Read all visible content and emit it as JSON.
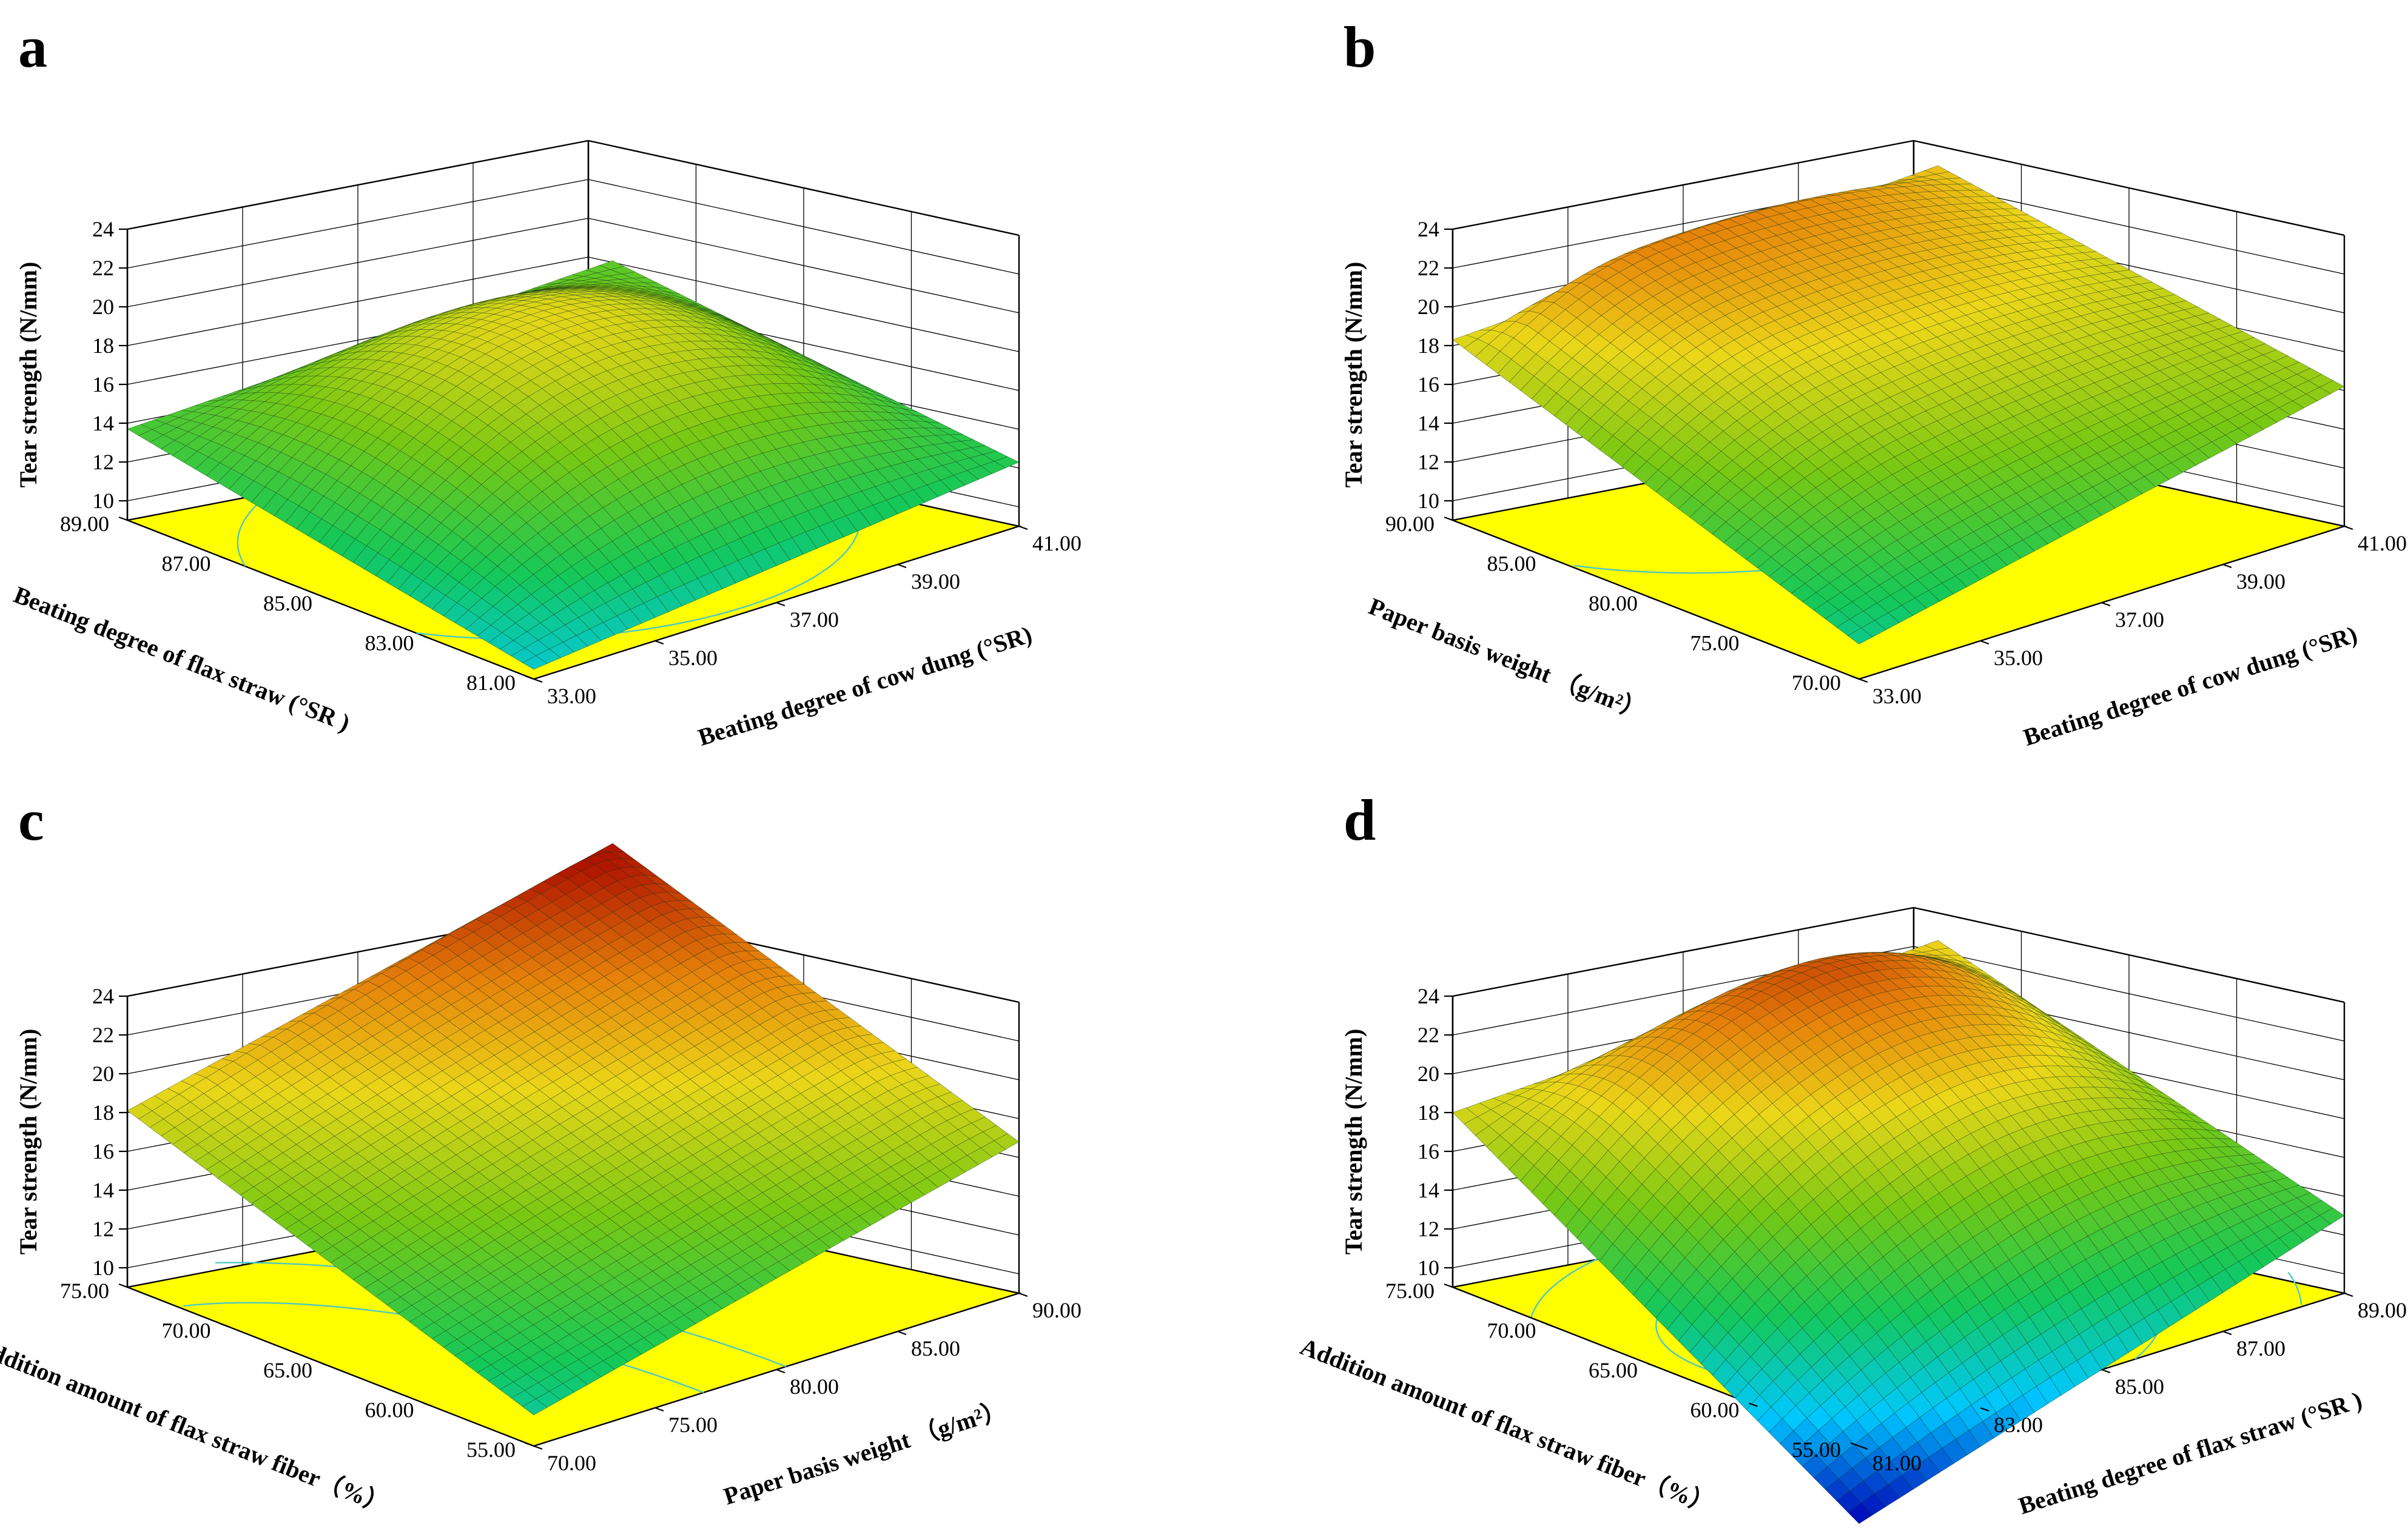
{
  "chart_data": [
    {
      "type": "surface3d",
      "panel": "a",
      "zlabel": "Tear strength (N/mm)",
      "zticks": [
        "10",
        "12",
        "14",
        "16",
        "18",
        "20",
        "22",
        "24"
      ],
      "zlim": [
        9,
        24
      ],
      "left_axis": {
        "label": "Beating degree of flax straw (°SR )",
        "ticks": [
          "81.00",
          "83.00",
          "85.00",
          "87.00",
          "89.00"
        ]
      },
      "right_axis": {
        "label": "Beating degree of cow dung (°SR)",
        "ticks": [
          "33.00",
          "35.00",
          "37.00",
          "39.00",
          "41.00"
        ]
      },
      "corners": {
        "front": 9.5,
        "left_far": 13.7,
        "right_far": 12.3,
        "back": 14.5
      },
      "peak": {
        "u": 0.5,
        "v": 0.55,
        "z": 18.3
      },
      "contours": [
        {
          "cu": 0.45,
          "cv": 0.5,
          "ru": 0.32,
          "rv": 0.3
        },
        {
          "cu": 0.45,
          "cv": 0.5,
          "ru": 0.5,
          "rv": 0.48
        }
      ]
    },
    {
      "type": "surface3d",
      "panel": "b",
      "zlabel": "Tear strength (N/mm)",
      "zticks": [
        "10",
        "12",
        "14",
        "16",
        "18",
        "20",
        "22",
        "24"
      ],
      "zlim": [
        9,
        24
      ],
      "left_axis": {
        "label": "Paper basis weight （g/m²）",
        "ticks": [
          "70.00",
          "75.00",
          "80.00",
          "85.00",
          "90.00"
        ]
      },
      "right_axis": {
        "label": "Beating degree of cow dung (°SR)",
        "ticks": [
          "33.00",
          "35.00",
          "37.00",
          "39.00",
          "41.00"
        ]
      },
      "corners": {
        "front": 10.8,
        "left_far": 18.3,
        "right_far": 16.2,
        "back": 19.4
      },
      "peak": {
        "u": 0.35,
        "v": 0.9,
        "z": 21.2
      },
      "contours": [
        {
          "cu": 0.5,
          "cv": 0.95,
          "ru": 0.55,
          "rv": 0.55
        }
      ]
    },
    {
      "type": "surface3d",
      "panel": "c",
      "zlabel": "Tear strength (N/mm)",
      "zticks": [
        "10",
        "12",
        "14",
        "16",
        "18",
        "20",
        "22",
        "24"
      ],
      "zlim": [
        9,
        24
      ],
      "left_axis": {
        "label": "Addition amount of flax straw fiber（%）",
        "ticks": [
          "55.00",
          "60.00",
          "65.00",
          "70.00",
          "75.00"
        ]
      },
      "right_axis": {
        "label": "Paper basis weight （g/m²）",
        "ticks": [
          "70.00",
          "75.00",
          "80.00",
          "85.00",
          "90.00"
        ]
      },
      "corners": {
        "front": 10.6,
        "left_far": 18.1,
        "right_far": 16.8,
        "back": 24.0
      },
      "peak": {
        "u": 0.9,
        "v": 0.95,
        "z": 24.0
      },
      "contours": [
        {
          "cu": -0.1,
          "cv": 0.0,
          "ru": 0.45,
          "rv": 0.9
        },
        {
          "cu": -0.1,
          "cv": 0.0,
          "ru": 0.62,
          "rv": 1.1
        }
      ]
    },
    {
      "type": "surface3d",
      "panel": "d",
      "zlabel": "Tear strength (N/mm)",
      "zticks": [
        "10",
        "12",
        "14",
        "16",
        "18",
        "20",
        "22",
        "24"
      ],
      "zlim": [
        9,
        24
      ],
      "left_axis": {
        "label": "Addition amount of flax straw fiber（%）",
        "ticks": [
          "55.00",
          "60.00",
          "65.00",
          "70.00",
          "75.00"
        ]
      },
      "right_axis": {
        "label": "Beating degree of flax straw (°SR )",
        "ticks": [
          "81.00",
          "83.00",
          "85.00",
          "87.00",
          "89.00"
        ]
      },
      "corners": {
        "front": 5.0,
        "left_far": 18.0,
        "right_far": 13.0,
        "back": 19.0
      },
      "peak": {
        "u": 0.55,
        "v": 0.75,
        "z": 22.2
      },
      "contours": [
        {
          "cu": 0.35,
          "cv": 0.45,
          "ru": 0.3,
          "rv": 0.3
        },
        {
          "cu": 0.35,
          "cv": 0.45,
          "ru": 0.5,
          "rv": 0.5
        },
        {
          "cu": 0.35,
          "cv": 0.45,
          "ru": 0.72,
          "rv": 0.72
        }
      ]
    }
  ]
}
